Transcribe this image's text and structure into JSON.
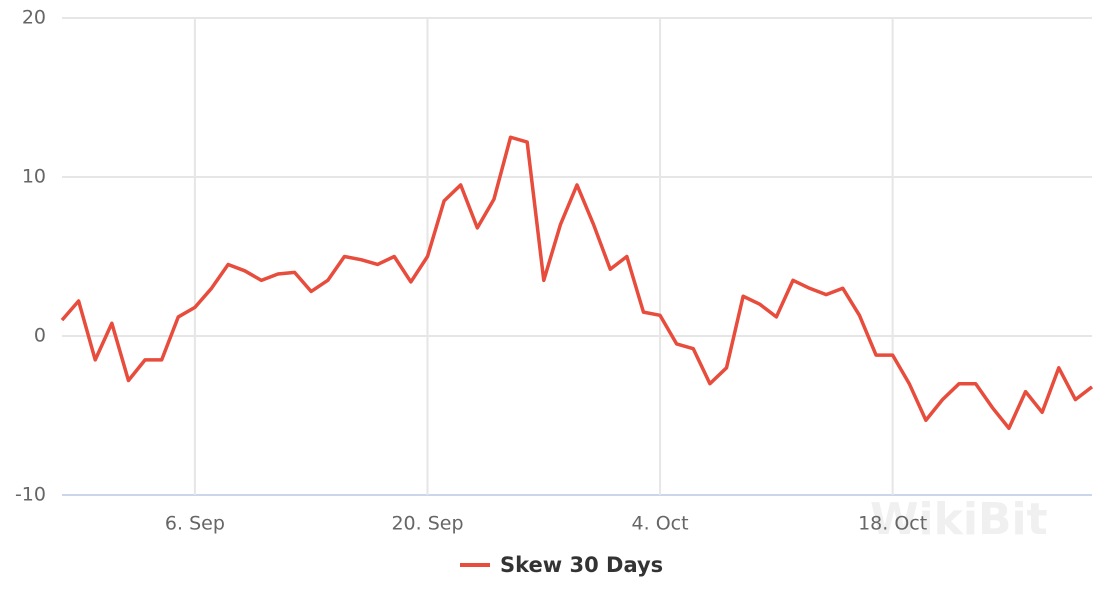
{
  "chart_data": {
    "type": "line",
    "x": [
      "08-29",
      "08-30",
      "08-31",
      "09-01",
      "09-02",
      "09-03",
      "09-04",
      "09-05",
      "09-06",
      "09-07",
      "09-08",
      "09-09",
      "09-10",
      "09-11",
      "09-12",
      "09-13",
      "09-14",
      "09-15",
      "09-16",
      "09-17",
      "09-18",
      "09-19",
      "09-20",
      "09-21",
      "09-22",
      "09-23",
      "09-24",
      "09-25",
      "09-26",
      "09-27",
      "09-28",
      "09-29",
      "09-30",
      "10-01",
      "10-02",
      "10-03",
      "10-04",
      "10-05",
      "10-06",
      "10-07",
      "10-08",
      "10-09",
      "10-10",
      "10-11",
      "10-12",
      "10-13",
      "10-14",
      "10-15",
      "10-16",
      "10-17",
      "10-18",
      "10-19",
      "10-20",
      "10-21",
      "10-22",
      "10-23",
      "10-24",
      "10-25",
      "10-26",
      "10-27",
      "10-28",
      "10-29",
      "10-30"
    ],
    "series": [
      {
        "name": "Skew 30 Days",
        "color": "#e74c3c",
        "values": [
          1,
          2.2,
          -1.5,
          0.8,
          -2.8,
          -1.5,
          -1.5,
          1.2,
          1.8,
          3,
          4.5,
          4.1,
          3.5,
          3.9,
          4,
          2.8,
          3.5,
          5,
          4.8,
          4.5,
          5,
          3.4,
          5,
          8.5,
          9.5,
          6.8,
          8.6,
          12.5,
          12.2,
          3.5,
          7,
          9.5,
          7,
          4.2,
          5,
          1.5,
          1.3,
          -0.5,
          -0.8,
          -3,
          -2,
          2.5,
          2,
          1.2,
          3.5,
          3,
          2.6,
          3,
          1.3,
          -1.2,
          -1.2,
          -3,
          -5.3,
          -4,
          -3,
          -3,
          -4.5,
          -5.8,
          -3.5,
          -4.8,
          -2,
          -4,
          -3.2
        ]
      }
    ],
    "xlim": [
      "08-29",
      "10-30"
    ],
    "xticks": [
      {
        "value": "09-06",
        "label": "6. Sep"
      },
      {
        "value": "09-20",
        "label": "20. Sep"
      },
      {
        "value": "10-04",
        "label": "4. Oct"
      },
      {
        "value": "10-18",
        "label": "18. Oct"
      }
    ],
    "ylim": [
      -10,
      20
    ],
    "yticks": [
      -10,
      0,
      10,
      20
    ],
    "grid": true,
    "legend": "bottom",
    "watermark": "WikiBit"
  }
}
